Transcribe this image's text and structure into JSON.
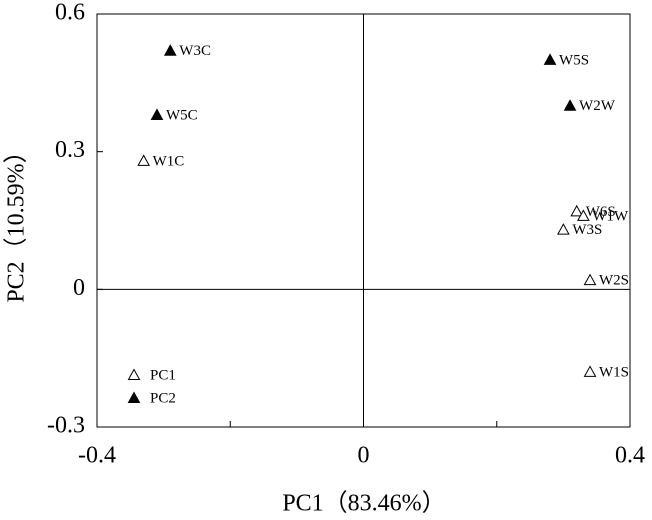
{
  "chart_data": {
    "type": "scatter",
    "xlabel": "PC1（83.46%）",
    "ylabel": "PC2（10.59%）",
    "xlim": [
      -0.4,
      0.4
    ],
    "xticks": [
      -0.4,
      0,
      0.4
    ],
    "xminorticks": [
      -0.2,
      0.2
    ],
    "ylim": [
      -0.3,
      0.6
    ],
    "yticks": [
      -0.3,
      0,
      0.3,
      0.6
    ],
    "zero_lines": true,
    "legend": "lower left",
    "series": [
      {
        "name": "PC1",
        "marker": "open-triangle",
        "color": "#000000",
        "labels": [
          "W1C",
          "W6S",
          "W1W",
          "W3S",
          "W2S",
          "W1S"
        ],
        "x": [
          -0.33,
          0.32,
          0.33,
          0.3,
          0.34,
          0.34
        ],
        "values": [
          0.28,
          0.17,
          0.16,
          0.13,
          0.02,
          -0.18
        ]
      },
      {
        "name": "PC2",
        "marker": "filled-triangle",
        "color": "#000000",
        "labels": [
          "W3C",
          "W5C",
          "W5S",
          "W2W"
        ],
        "x": [
          -0.29,
          -0.31,
          0.28,
          0.31
        ],
        "values": [
          0.52,
          0.38,
          0.5,
          0.4
        ]
      }
    ]
  }
}
